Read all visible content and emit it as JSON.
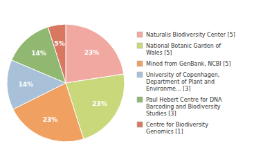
{
  "chart_data": {
    "type": "pie",
    "categories": [
      "Naturalis Biodiversity Center [5]",
      "National Botanic Garden of\nWales [5]",
      "Mined from GenBank, NCBI [5]",
      "University of Copenhagen,\nDepartment of Plant and\nEnvironme... [3]",
      "Paul Hebert Centre for DNA\nBarcoding and Biodiversity\nStudies [3]",
      "Centre for Biodiversity\nGenomics [1]"
    ],
    "values": [
      23,
      23,
      23,
      14,
      14,
      5
    ],
    "value_labels": [
      "23%",
      "23%",
      "23%",
      "14%",
      "14%",
      "5%"
    ],
    "colors": [
      "#f0a8a0",
      "#c8d87a",
      "#f0a060",
      "#a8c0d8",
      "#90b870",
      "#d87860"
    ],
    "data_labels": true,
    "legend": "right"
  }
}
